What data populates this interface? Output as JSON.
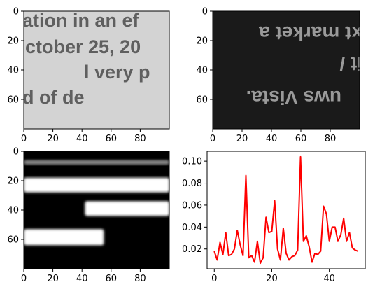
{
  "chart_data": [
    {
      "type": "image",
      "panel": "top-left",
      "image_text_lines": [
        "ation in an ef",
        "ctober 25, 20",
        "l very p",
        "d of de"
      ],
      "xticks": [
        "0",
        "20",
        "40",
        "60",
        "80"
      ],
      "yticks": [
        "0",
        "20",
        "40",
        "60"
      ],
      "xlim": [
        0,
        100
      ],
      "ylim": [
        80,
        0
      ],
      "colors": {
        "background": "#d3d3d3",
        "text": "#5f5f5f"
      }
    },
    {
      "type": "image",
      "panel": "top-right",
      "image_text_lines": [
        "xt market a",
        "it /",
        "uws Vista."
      ],
      "text_orientation": "rotated-180",
      "xticks": [
        "0",
        "20",
        "40",
        "60",
        "80"
      ],
      "yticks": [
        "0",
        "20",
        "40",
        "60"
      ],
      "xlim": [
        0,
        100
      ],
      "ylim": [
        80,
        0
      ],
      "colors": {
        "background": "#1a1a1a",
        "text": "#9a9a9a"
      }
    },
    {
      "type": "image",
      "panel": "bottom-left",
      "description_values": {
        "bands": [
          {
            "x0": 0,
            "x1": 100,
            "y0": 6,
            "y1": 9,
            "shade": 0.55
          },
          {
            "x0": 0,
            "x1": 100,
            "y0": 18,
            "y1": 28,
            "shade": 1.0
          },
          {
            "x0": 42,
            "x1": 100,
            "y0": 34,
            "y1": 44,
            "shade": 1.0
          },
          {
            "x0": 0,
            "x1": 55,
            "y0": 53,
            "y1": 64,
            "shade": 1.0
          }
        ]
      },
      "xticks": [
        "0",
        "20",
        "40",
        "60",
        "80"
      ],
      "yticks": [
        "0",
        "20",
        "40",
        "60"
      ],
      "xlim": [
        0,
        100
      ],
      "ylim": [
        80,
        0
      ],
      "colors": {
        "background": "#000000",
        "band": "#ffffff"
      }
    },
    {
      "type": "line",
      "panel": "bottom-right",
      "x": [
        0,
        1,
        2,
        3,
        4,
        5,
        6,
        7,
        8,
        9,
        10,
        11,
        12,
        13,
        14,
        15,
        16,
        17,
        18,
        19,
        20,
        21,
        22,
        23,
        24,
        25,
        26,
        27,
        28,
        29,
        30,
        31,
        32,
        33,
        34,
        35,
        36,
        37,
        38,
        39,
        40,
        41,
        42,
        43,
        44,
        45,
        46,
        47,
        48,
        49,
        50
      ],
      "y": [
        0.018,
        0.01,
        0.026,
        0.015,
        0.035,
        0.014,
        0.015,
        0.02,
        0.037,
        0.024,
        0.014,
        0.087,
        0.012,
        0.014,
        0.008,
        0.027,
        0.007,
        0.012,
        0.049,
        0.035,
        0.036,
        0.064,
        0.02,
        0.01,
        0.039,
        0.016,
        0.01,
        0.013,
        0.014,
        0.019,
        0.104,
        0.027,
        0.032,
        0.022,
        0.008,
        0.016,
        0.015,
        0.018,
        0.059,
        0.052,
        0.027,
        0.04,
        0.04,
        0.027,
        0.033,
        0.048,
        0.027,
        0.035,
        0.021,
        0.019,
        0.018
      ],
      "xticks": [
        "0",
        "20",
        "40"
      ],
      "yticks": [
        "0.02",
        "0.04",
        "0.06",
        "0.08",
        "0.10"
      ],
      "xlim": [
        -2.5,
        52.5
      ],
      "ylim": [
        0.002,
        0.109
      ],
      "colors": {
        "line": "#ff0000"
      }
    }
  ]
}
